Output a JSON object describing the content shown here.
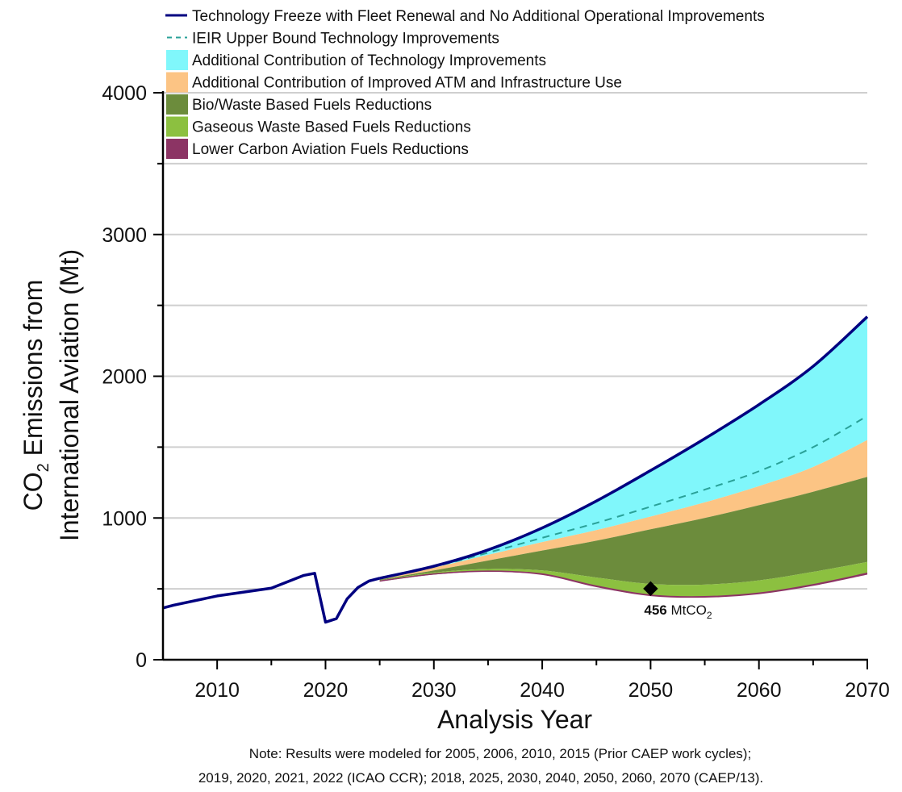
{
  "chart_data": {
    "type": "area",
    "title": "",
    "xlabel": "Analysis Year",
    "ylabel_line1": "CO2 Emissions from",
    "ylabel_line2": "International Aviation (Mt)",
    "ylabel_parts": {
      "pre": "CO",
      "sub": "2",
      "post": " Emissions from"
    },
    "xlim": [
      2005,
      2070
    ],
    "ylim": [
      0,
      4000
    ],
    "xticks": [
      2010,
      2020,
      2030,
      2040,
      2050,
      2060,
      2070
    ],
    "xticks_minor": [
      2015,
      2025,
      2035,
      2045,
      2055,
      2065
    ],
    "yticks": [
      0,
      1000,
      2000,
      3000,
      4000
    ],
    "yticks_minor": [
      500,
      1500,
      2500,
      3500
    ],
    "grid": true,
    "legend_position": "top",
    "note_line1": "Note: Results were modeled for 2005, 2006, 2010, 2015 (Prior CAEP work cycles);",
    "note_line2": "2019, 2020, 2021, 2022 (ICAO CCR); 2018, 2025, 2030, 2040, 2050, 2060, 2070 (CAEP/13).",
    "annotation": {
      "x": 2050,
      "y": 456,
      "value": "456",
      "unit_pre": "MtCO",
      "unit_sub": "2"
    },
    "historical_line": {
      "name": "Technology Freeze with Fleet Renewal and No Additional Operational Improvements",
      "color": "#000080",
      "x": [
        2005,
        2006,
        2010,
        2015,
        2018,
        2019,
        2020,
        2021,
        2022,
        2023,
        2024,
        2025
      ],
      "y": [
        365,
        385,
        450,
        505,
        595,
        610,
        265,
        290,
        430,
        510,
        555,
        575
      ]
    },
    "series": [
      {
        "name": "Technology Freeze with Fleet Renewal and No Additional Operational Improvements",
        "kind": "line",
        "color": "#000080",
        "x": [
          2025,
          2030,
          2035,
          2040,
          2045,
          2050,
          2055,
          2060,
          2065,
          2070
        ],
        "y": [
          575,
          660,
          775,
          930,
          1120,
          1335,
          1560,
          1800,
          2070,
          2420
        ]
      },
      {
        "name": "IEIR Upper Bound Technology Improvements",
        "kind": "dashed",
        "color": "#2aa198",
        "x": [
          2025,
          2030,
          2035,
          2040,
          2045,
          2050,
          2055,
          2060,
          2065,
          2070
        ],
        "y": [
          575,
          655,
          755,
          860,
          965,
          1080,
          1200,
          1330,
          1500,
          1720
        ]
      },
      {
        "name": "Additional Contribution of Technology Improvements",
        "kind": "area",
        "color": "#80F7FB",
        "x": [
          2025,
          2030,
          2035,
          2040,
          2045,
          2050,
          2055,
          2060,
          2065,
          2070
        ],
        "upper": [
          575,
          660,
          775,
          930,
          1120,
          1335,
          1560,
          1800,
          2070,
          2420
        ],
        "lower": [
          575,
          650,
          740,
          830,
          915,
          1010,
          1110,
          1225,
          1360,
          1550
        ]
      },
      {
        "name": "Additional Contribution of Improved ATM and Infrastructure Use",
        "kind": "area",
        "color": "#FCC484",
        "x": [
          2025,
          2030,
          2035,
          2040,
          2045,
          2050,
          2055,
          2060,
          2065,
          2070
        ],
        "upper": [
          575,
          650,
          740,
          830,
          915,
          1010,
          1110,
          1225,
          1360,
          1550
        ],
        "lower": [
          565,
          630,
          700,
          770,
          840,
          920,
          1000,
          1090,
          1185,
          1290
        ]
      },
      {
        "name": "Bio/Waste Based Fuels Reductions",
        "kind": "area",
        "color": "#6C8C3C",
        "x": [
          2025,
          2030,
          2035,
          2040,
          2045,
          2050,
          2055,
          2060,
          2065,
          2070
        ],
        "upper": [
          565,
          630,
          700,
          770,
          840,
          920,
          1000,
          1090,
          1185,
          1290
        ],
        "lower": [
          560,
          615,
          640,
          630,
          580,
          535,
          530,
          560,
          620,
          690
        ]
      },
      {
        "name": "Gaseous Waste Based Fuels Reductions",
        "kind": "area",
        "color": "#8CC040",
        "x": [
          2025,
          2030,
          2035,
          2040,
          2045,
          2050,
          2055,
          2060,
          2065,
          2070
        ],
        "upper": [
          560,
          615,
          640,
          630,
          580,
          535,
          530,
          560,
          620,
          690
        ],
        "lower": [
          555,
          605,
          625,
          605,
          520,
          456,
          445,
          470,
          530,
          610
        ]
      },
      {
        "name": "Lower Carbon Aviation Fuels Reductions",
        "kind": "area",
        "color": "#8C3464",
        "x": [
          2025,
          2030,
          2035,
          2040,
          2045,
          2050,
          2055,
          2060,
          2065,
          2070
        ],
        "upper": [
          555,
          605,
          625,
          605,
          520,
          456,
          445,
          470,
          530,
          610
        ],
        "lower": [
          552,
          600,
          620,
          598,
          512,
          449,
          438,
          462,
          521,
          600
        ]
      }
    ],
    "legend": [
      {
        "label": "Technology Freeze with Fleet Renewal and No Additional Operational Improvements",
        "style": "line",
        "color": "#000080"
      },
      {
        "label": "IEIR Upper Bound Technology Improvements",
        "style": "dashed",
        "color": "#2aa198"
      },
      {
        "label": "Additional Contribution of Technology Improvements",
        "style": "box",
        "color": "#80F7FB"
      },
      {
        "label": "Additional Contribution of Improved ATM and Infrastructure Use",
        "style": "box",
        "color": "#FCC484"
      },
      {
        "label": "Bio/Waste Based Fuels Reductions",
        "style": "box",
        "color": "#6C8C3C"
      },
      {
        "label": "Gaseous Waste Based Fuels Reductions",
        "style": "box",
        "color": "#8CC040"
      },
      {
        "label": "Lower Carbon Aviation Fuels Reductions",
        "style": "box",
        "color": "#8C3464"
      }
    ]
  }
}
